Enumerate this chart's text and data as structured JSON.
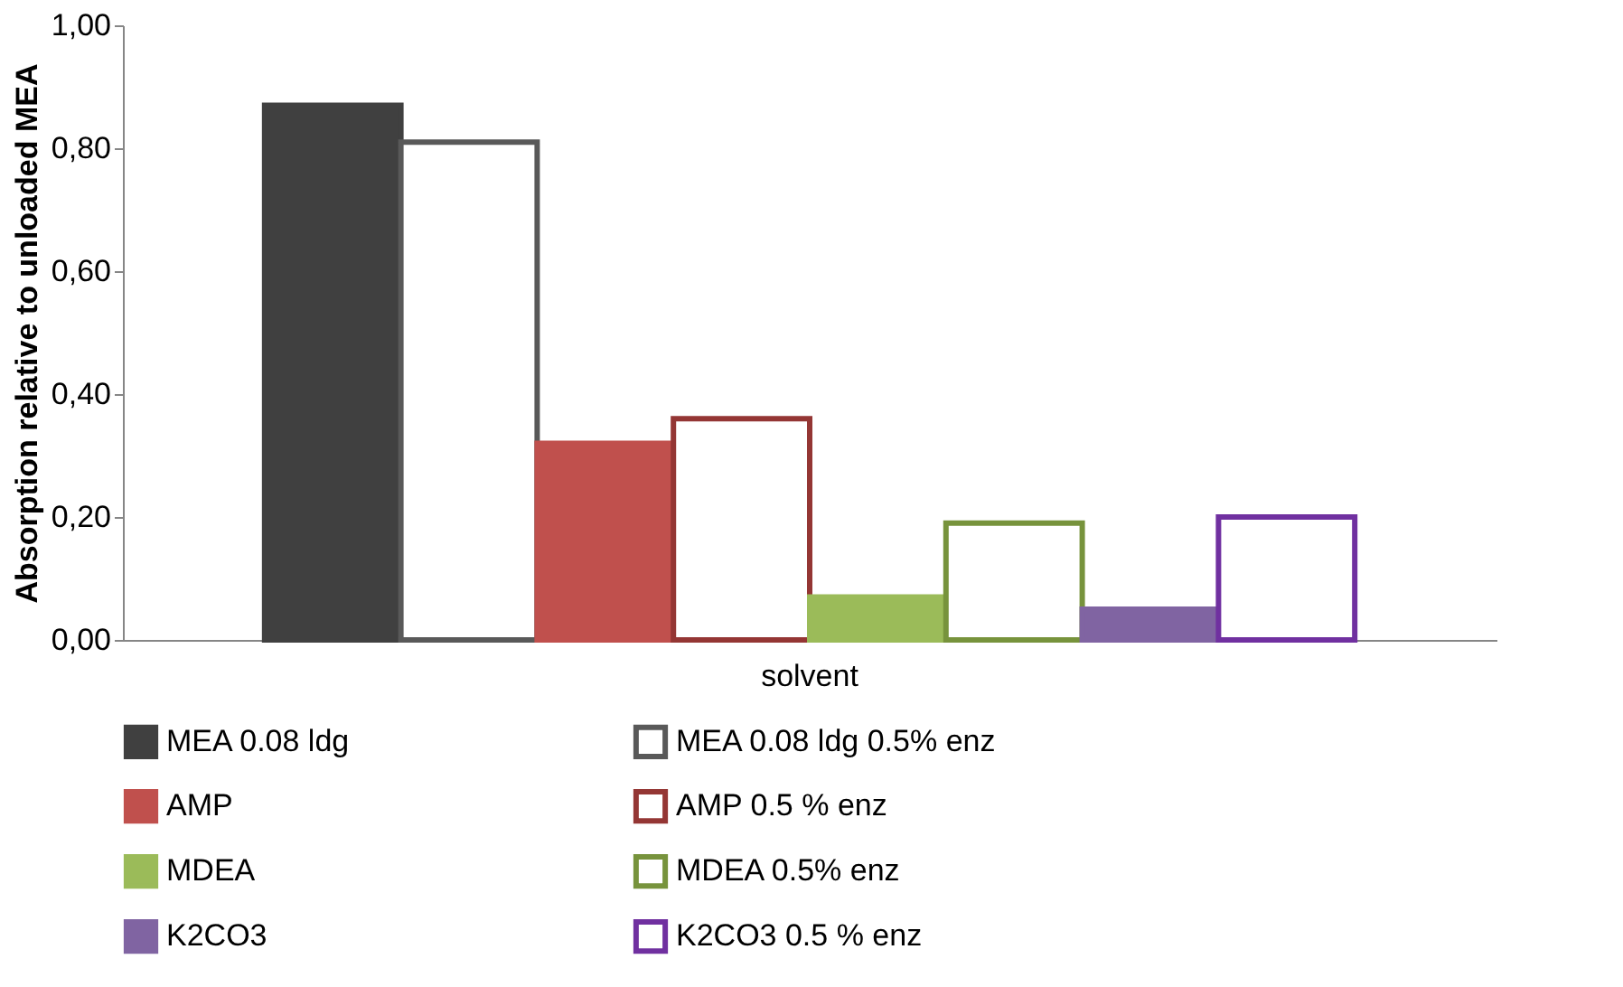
{
  "chart_data": {
    "type": "bar",
    "ylabel": "Absorption relative to unloaded MEA",
    "categories": [
      "solvent"
    ],
    "series": [
      {
        "name": "MEA 0.08 ldg",
        "color": "#404040",
        "values": [
          0.87
        ]
      },
      {
        "name": "MEA 0.08 ldg 0.5% enz",
        "color": "#595959",
        "values": [
          0.81
        ]
      },
      {
        "name": "AMP",
        "color": "#c0504d",
        "values": [
          0.32
        ]
      },
      {
        "name": "AMP 0.5 % enz",
        "color": "#943634",
        "values": [
          0.36
        ]
      },
      {
        "name": "MDEA",
        "color": "#9bbb59",
        "values": [
          0.07
        ]
      },
      {
        "name": "MDEA 0.5% enz",
        "color": "#77933c",
        "values": [
          0.19
        ]
      },
      {
        "name": "K2CO3",
        "color": "#8064a2",
        "values": [
          0.05
        ]
      },
      {
        "name": "K2CO3 0.5 % enz",
        "color": "#7030a0",
        "values": [
          0.2
        ]
      }
    ],
    "ylim": [
      0,
      1
    ],
    "yticks": [
      {
        "value": 0,
        "label": "0,00"
      },
      {
        "value": 0.2,
        "label": "0,20"
      },
      {
        "value": 0.4,
        "label": "0,40"
      },
      {
        "value": 0.6,
        "label": "0,60"
      },
      {
        "value": 0.8,
        "label": "0,80"
      },
      {
        "value": 1,
        "label": "1,00"
      }
    ],
    "grid": false,
    "legend": "bottom"
  }
}
